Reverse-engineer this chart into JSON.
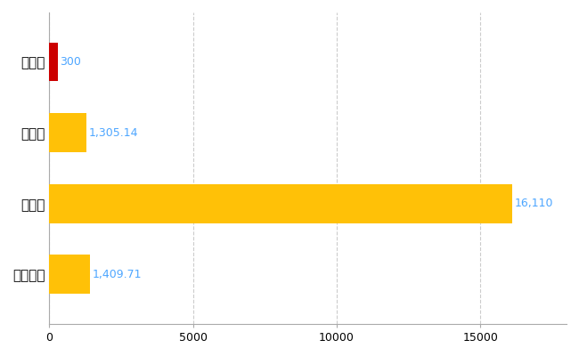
{
  "categories": [
    "和水町",
    "県平均",
    "県最大",
    "全国平均"
  ],
  "values": [
    300,
    1305.14,
    16110,
    1409.71
  ],
  "bar_colors": [
    "#CC0000",
    "#FFC107",
    "#FFC107",
    "#FFC107"
  ],
  "bar_labels": [
    "300",
    "1,305.14",
    "16,110",
    "1,409.71"
  ],
  "xlim": [
    0,
    18000
  ],
  "xticks": [
    0,
    5000,
    10000,
    15000
  ],
  "background_color": "#ffffff",
  "grid_color": "#cccccc",
  "label_color": "#4da6ff",
  "bar_height": 0.55
}
